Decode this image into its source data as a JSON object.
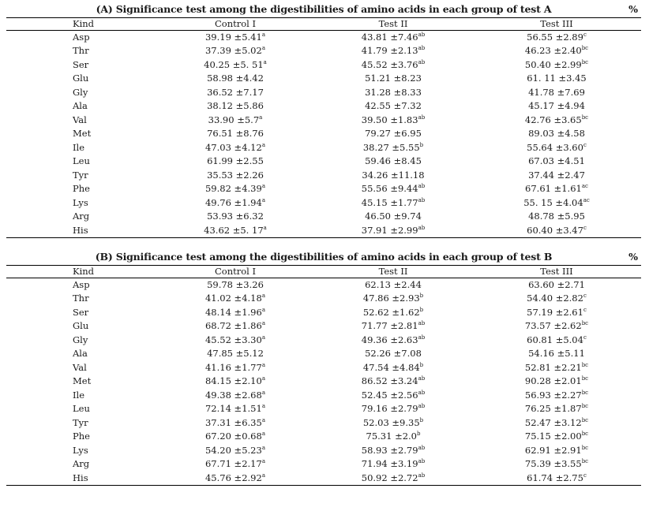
{
  "tables": [
    {
      "title": "(A) Significance test among the digestibilities of amino acids in each group of test A",
      "unit": "%",
      "headers": [
        "Kind",
        "Control I",
        "Test II",
        "Test III"
      ],
      "rows": [
        {
          "kind": "Asp",
          "c": "39.19 ±5.41",
          "cs": "a",
          "t2": "43.81 ±7.46",
          "t2s": "ab",
          "t3": "56.55 ±2.89",
          "t3s": "c"
        },
        {
          "kind": "Thr",
          "c": "37.39 ±5.02",
          "cs": "a",
          "t2": "41.79 ±2.13",
          "t2s": "ab",
          "t3": "46.23 ±2.40",
          "t3s": "bc"
        },
        {
          "kind": "Ser",
          "c": "40.25 ±5. 51",
          "cs": "a",
          "t2": "45.52 ±3.76",
          "t2s": "ab",
          "t3": "50.40 ±2.99",
          "t3s": "bc"
        },
        {
          "kind": "Glu",
          "c": "58.98 ±4.42",
          "cs": "",
          "t2": "51.21 ±8.23",
          "t2s": "",
          "t3": "61. 11 ±3.45",
          "t3s": ""
        },
        {
          "kind": "Gly",
          "c": "36.52 ±7.17",
          "cs": "",
          "t2": "31.28 ±8.33",
          "t2s": "",
          "t3": "41.78 ±7.69",
          "t3s": ""
        },
        {
          "kind": "Ala",
          "c": "38.12 ±5.86",
          "cs": "",
          "t2": "42.55 ±7.32",
          "t2s": "",
          "t3": "45.17 ±4.94",
          "t3s": ""
        },
        {
          "kind": "Val",
          "c": "33.90 ±5.7",
          "cs": "a",
          "t2": "39.50 ±1.83",
          "t2s": "ab",
          "t3": "42.76 ±3.65",
          "t3s": "bc"
        },
        {
          "kind": "Met",
          "c": "76.51 ±8.76",
          "cs": "",
          "t2": "79.27 ±6.95",
          "t2s": "",
          "t3": "89.03 ±4.58",
          "t3s": ""
        },
        {
          "kind": "Ile",
          "c": "47.03 ±4.12",
          "cs": "a",
          "t2": "38.27 ±5.55",
          "t2s": "b",
          "t3": "55.64 ±3.60",
          "t3s": "c"
        },
        {
          "kind": "Leu",
          "c": "61.99 ±2.55",
          "cs": "",
          "t2": "59.46 ±8.45",
          "t2s": "",
          "t3": "67.03 ±4.51",
          "t3s": ""
        },
        {
          "kind": "Tyr",
          "c": "35.53 ±2.26",
          "cs": "",
          "t2": "34.26 ±11.18",
          "t2s": "",
          "t3": "37.44 ±2.47",
          "t3s": ""
        },
        {
          "kind": "Phe",
          "c": "59.82 ±4.39",
          "cs": "a",
          "t2": "55.56 ±9.44",
          "t2s": "ab",
          "t3": "67.61 ±1.61",
          "t3s": "ac"
        },
        {
          "kind": "Lys",
          "c": "49.76 ±1.94",
          "cs": "a",
          "t2": "45.15 ±1.77",
          "t2s": "ab",
          "t3": "55. 15 ±4.04",
          "t3s": "ac"
        },
        {
          "kind": "Arg",
          "c": "53.93 ±6.32",
          "cs": "",
          "t2": "46.50 ±9.74",
          "t2s": "",
          "t3": "48.78 ±5.95",
          "t3s": ""
        },
        {
          "kind": "His",
          "c": "43.62 ±5. 17",
          "cs": "a",
          "t2": "37.91 ±2.99",
          "t2s": "ab",
          "t3": "60.40 ±3.47",
          "t3s": "c"
        }
      ]
    },
    {
      "title": "(B) Significance test among the digestibilities of amino acids in each group of test B",
      "unit": "%",
      "headers": [
        "Kind",
        "Control I",
        "Test II",
        "Test III"
      ],
      "rows": [
        {
          "kind": "Asp",
          "c": "59.78 ±3.26",
          "cs": "",
          "t2": "62.13 ±2.44",
          "t2s": "",
          "t3": "63.60 ±2.71",
          "t3s": ""
        },
        {
          "kind": "Thr",
          "c": "41.02 ±4.18",
          "cs": "a",
          "t2": "47.86 ±2.93",
          "t2s": "b",
          "t3": "54.40 ±2.82",
          "t3s": "c"
        },
        {
          "kind": "Ser",
          "c": "48.14 ±1.96",
          "cs": "a",
          "t2": "52.62 ±1.62",
          "t2s": "b",
          "t3": "57.19 ±2.61",
          "t3s": "c"
        },
        {
          "kind": "Glu",
          "c": "68.72 ±1.86",
          "cs": "a",
          "t2": "71.77 ±2.81",
          "t2s": "ab",
          "t3": "73.57 ±2.62",
          "t3s": "bc"
        },
        {
          "kind": "Gly",
          "c": "45.52 ±3.30",
          "cs": "a",
          "t2": "49.36 ±2.63",
          "t2s": "ab",
          "t3": "60.81 ±5.04",
          "t3s": "c"
        },
        {
          "kind": "Ala",
          "c": "47.85 ±5.12",
          "cs": "",
          "t2": "52.26 ±7.08",
          "t2s": "",
          "t3": "54.16 ±5.11",
          "t3s": ""
        },
        {
          "kind": "Val",
          "c": "41.16 ±1.77",
          "cs": "a",
          "t2": "47.54 ±4.84",
          "t2s": "b",
          "t3": "52.81 ±2.21",
          "t3s": "bc"
        },
        {
          "kind": "Met",
          "c": "84.15 ±2.10",
          "cs": "a",
          "t2": "86.52 ±3.24",
          "t2s": "ab",
          "t3": "90.28 ±2.01",
          "t3s": "bc"
        },
        {
          "kind": "Ile",
          "c": "49.38 ±2.68",
          "cs": "a",
          "t2": "52.45 ±2.56",
          "t2s": "ab",
          "t3": "56.93 ±2.27",
          "t3s": "bc"
        },
        {
          "kind": "Leu",
          "c": "72.14 ±1.51",
          "cs": "a",
          "t2": "79.16 ±2.79",
          "t2s": "ab",
          "t3": "76.25 ±1.87",
          "t3s": "bc"
        },
        {
          "kind": "Tyr",
          "c": "37.31 ±6.35",
          "cs": "a",
          "t2": "52.03 ±9.35",
          "t2s": "b",
          "t3": "52.47 ±3.12",
          "t3s": "bc"
        },
        {
          "kind": "Phe",
          "c": "67.20 ±0.68",
          "cs": "a",
          "t2": "75.31 ±2.0",
          "t2s": "b",
          "t3": "75.15 ±2.00",
          "t3s": "bc"
        },
        {
          "kind": "Lys",
          "c": "54.20 ±5.23",
          "cs": "a",
          "t2": "58.93 ±2.79",
          "t2s": "ab",
          "t3": "62.91 ±2.91",
          "t3s": "bc"
        },
        {
          "kind": "Arg",
          "c": "67.71 ±2.17",
          "cs": "a",
          "t2": "71.94 ±3.19",
          "t2s": "ab",
          "t3": "75.39 ±3.55",
          "t3s": "bc"
        },
        {
          "kind": "His",
          "c": "45.76 ±2.92",
          "cs": "a",
          "t2": "50.92 ±2.72",
          "t2s": "ab",
          "t3": "61.74 ±2.75",
          "t3s": "c"
        }
      ]
    }
  ]
}
